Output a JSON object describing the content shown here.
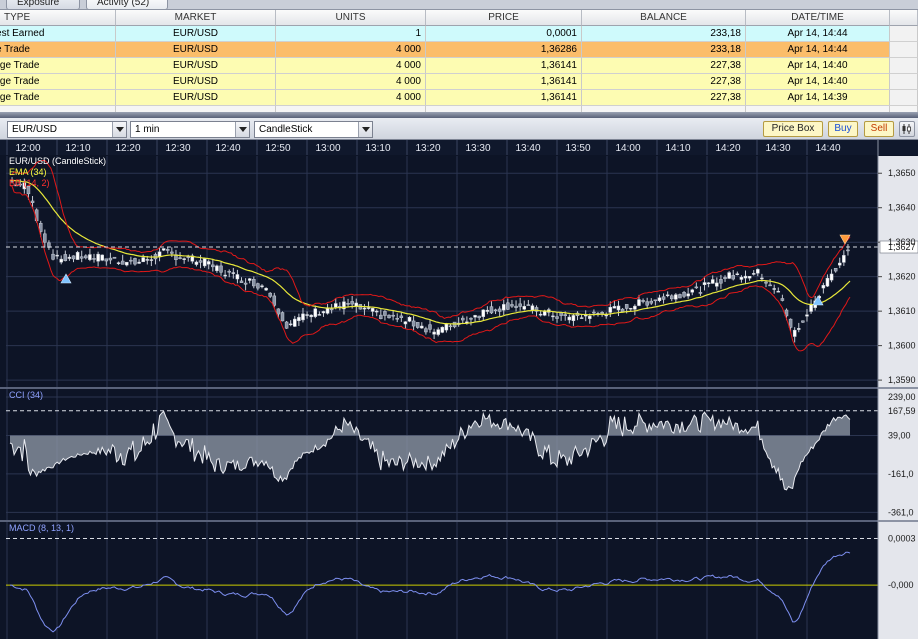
{
  "tabs": [
    {
      "label": "Exposure"
    },
    {
      "label": "Activity (52)"
    }
  ],
  "activity": {
    "columns": [
      "TYPE",
      "MARKET",
      "UNITS",
      "PRICE",
      "BALANCE",
      "DATE/TIME"
    ],
    "rows": [
      {
        "type": "Interest Earned",
        "market": "EUR/USD",
        "units": "1",
        "price": "0,0001",
        "balance": "233,18",
        "datetime": "Apr 14, 14:44",
        "color": "#cffafc"
      },
      {
        "type": "Close Trade",
        "market": "EUR/USD",
        "units": "4 000",
        "price": "1,36286",
        "balance": "233,18",
        "datetime": "Apr 14, 14:44",
        "color": "#fbbd6a"
      },
      {
        "type": "Change Trade",
        "market": "EUR/USD",
        "units": "4 000",
        "price": "1,36141",
        "balance": "227,38",
        "datetime": "Apr 14, 14:40",
        "color": "#fdfcb2"
      },
      {
        "type": "Change Trade",
        "market": "EUR/USD",
        "units": "4 000",
        "price": "1,36141",
        "balance": "227,38",
        "datetime": "Apr 14, 14:40",
        "color": "#fdfcb2"
      },
      {
        "type": "Change Trade",
        "market": "EUR/USD",
        "units": "4 000",
        "price": "1,36141",
        "balance": "227,38",
        "datetime": "Apr 14, 14:39",
        "color": "#fdfcb2"
      }
    ]
  },
  "toolbar": {
    "instrument": "EUR/USD",
    "interval": "1 min",
    "chart_type": "CandleStick",
    "price_box": "Price Box",
    "buy": "Buy",
    "sell": "Sell"
  },
  "chart": {
    "time_labels": [
      "12:00",
      "12:10",
      "12:20",
      "12:30",
      "12:40",
      "12:50",
      "13:00",
      "13:10",
      "13:20",
      "13:30",
      "13:40",
      "13:50",
      "14:00",
      "14:10",
      "14:20",
      "14:30",
      "14:40"
    ],
    "price_labels": [
      "1,3650",
      "1,3640",
      "1,3630",
      "1,3620",
      "1,3610",
      "1,3600",
      "1,3590"
    ],
    "current_price": "1,3627",
    "legend": [
      {
        "text": "EUR/USD (CandleStick)",
        "color": "#ffffff"
      },
      {
        "text": "EMA (34)",
        "color": "#ffff40"
      },
      {
        "text": "BB (14, 2)",
        "color": "#ff3030"
      }
    ],
    "cci": {
      "label": "CCI (34)",
      "levels": [
        "239,00",
        "167,59",
        "39,00",
        "-161,0",
        "-361,0"
      ]
    },
    "macd": {
      "label": "MACD (8, 13, 1)",
      "levels": [
        "0,0003",
        "-0,000"
      ]
    },
    "colors": {
      "ema": "#e8e83a",
      "bb": "#e01818",
      "candle_up": "#ffffff",
      "candle_down": "#8a94a6",
      "cci": "#e8eaf0",
      "macd": "#7d8ff0",
      "zero": "#cccc00"
    }
  }
}
